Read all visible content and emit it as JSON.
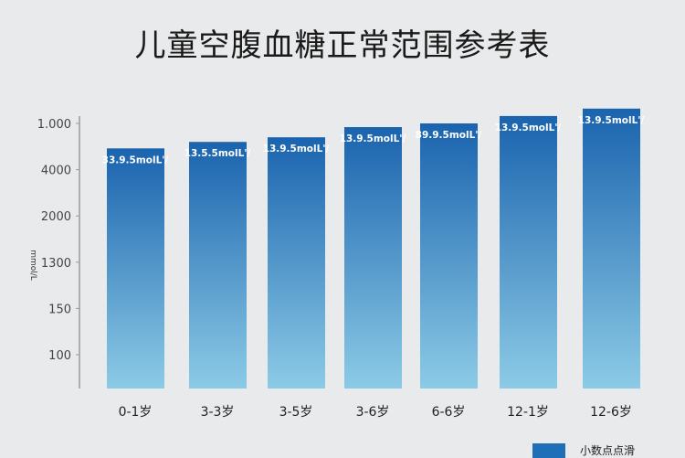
{
  "chart_data": {
    "type": "bar",
    "title": "儿童空腹血糖正常范围参考表",
    "ylabel": "mmol/L",
    "yticks": [
      "100",
      "150",
      "1300",
      "2000",
      "4000",
      "1.000"
    ],
    "categories": [
      "0-1岁",
      "3-3岁",
      "3-5岁",
      "3-6岁",
      "6-6岁",
      "12-1岁",
      "12-6岁"
    ],
    "values": [
      4.46,
      4.6,
      4.7,
      4.92,
      5.0,
      5.16,
      5.32
    ],
    "ylim": [
      -0.73,
      5.6
    ],
    "data_labels": [
      "33.9.5molL'/",
      "13.5.5molL'/",
      "13.9.5molL'/",
      "13.9.5molL'/",
      "89.9.5molL'/",
      "13.9.5molL'/",
      "13.9.5molL'/"
    ],
    "legend": {
      "entries": [
        "小数点点滑"
      ],
      "placement": "bottom-right"
    },
    "grid": false,
    "colors": {
      "bar_top": "#1a63ae",
      "bar_bottom": "#8ccbe6"
    }
  }
}
